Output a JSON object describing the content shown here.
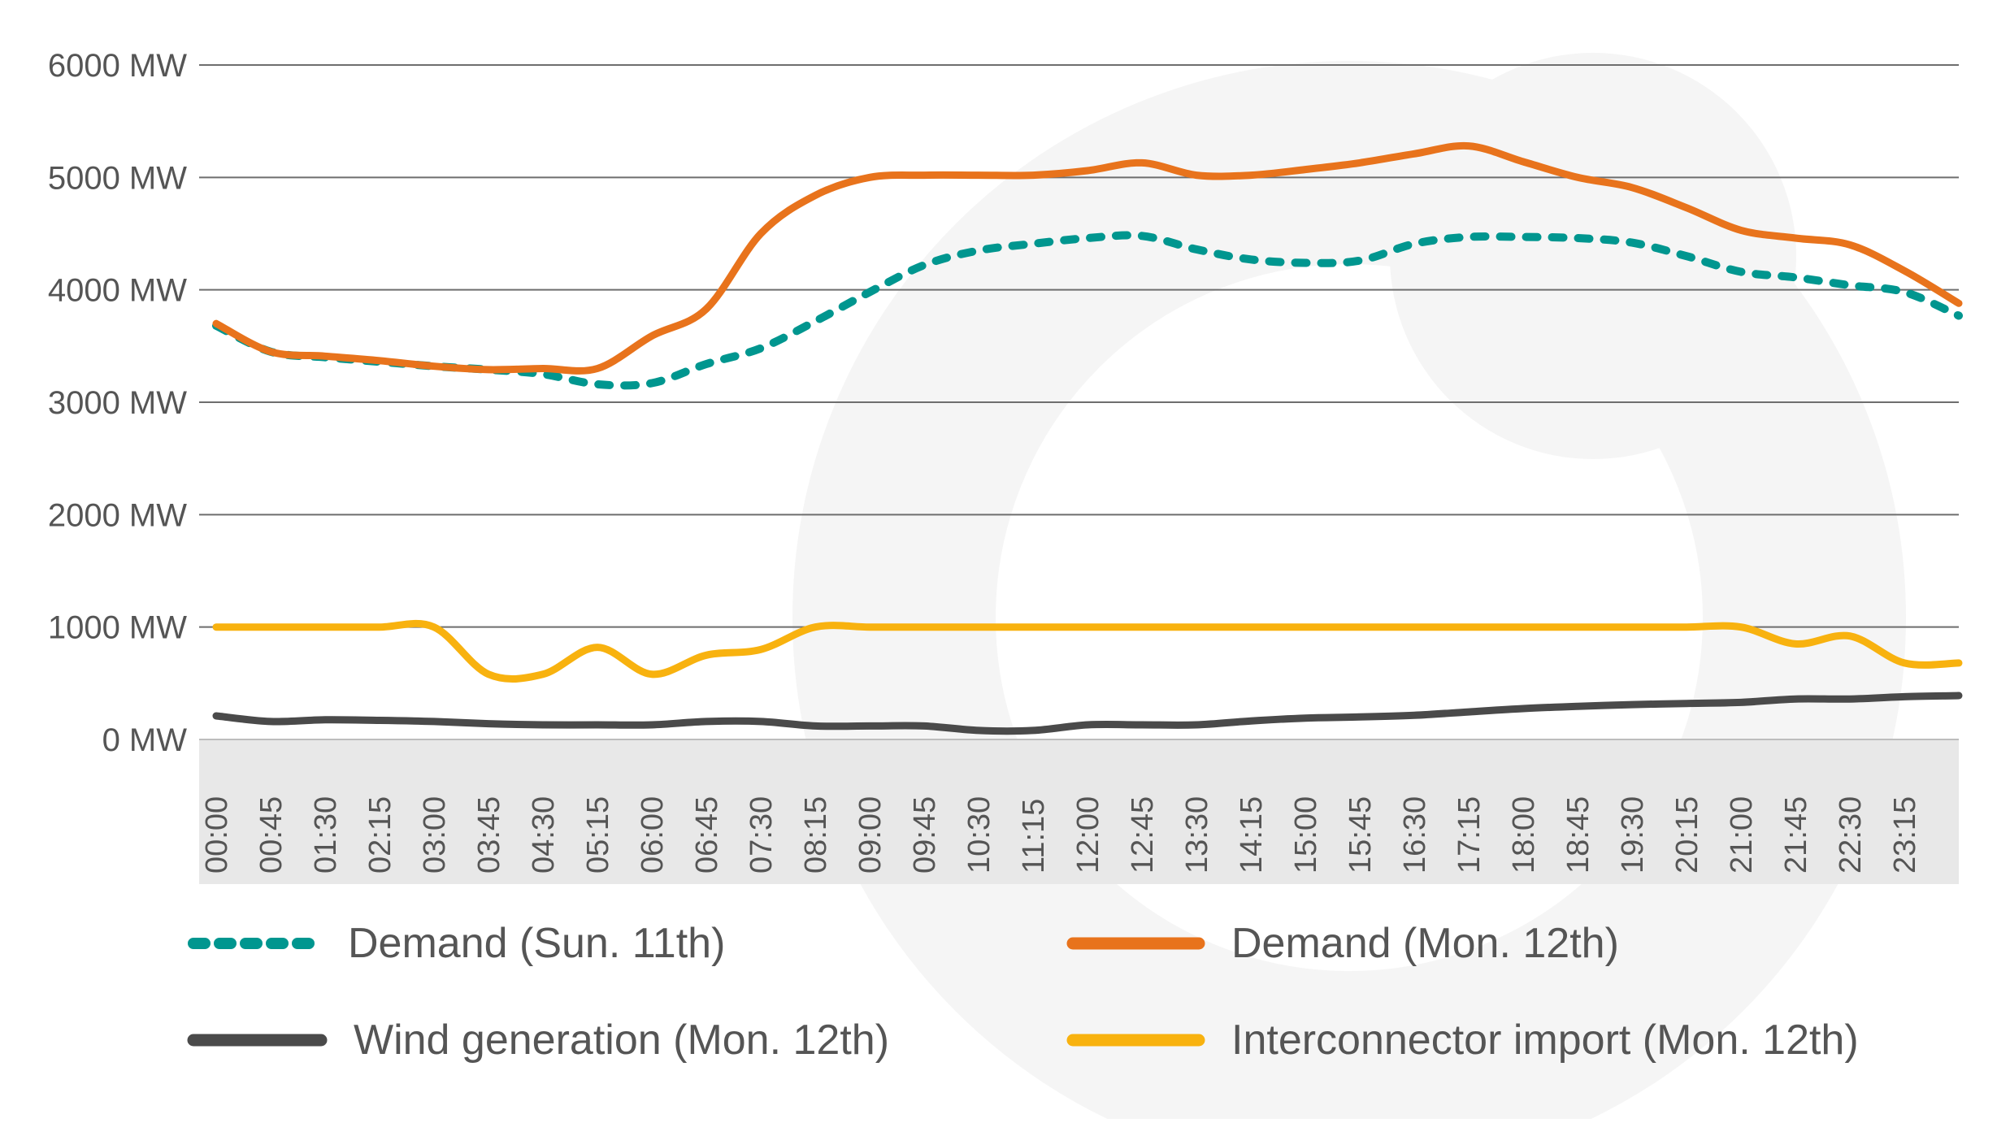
{
  "chart_data": {
    "type": "line",
    "y_unit": "MW",
    "ylim": [
      0,
      6000
    ],
    "yticks": [
      {
        "value": 0,
        "label": "0 MW"
      },
      {
        "value": 1000,
        "label": "1000 MW"
      },
      {
        "value": 2000,
        "label": "2000 MW"
      },
      {
        "value": 3000,
        "label": "3000 MW"
      },
      {
        "value": 4000,
        "label": "4000 MW"
      },
      {
        "value": 5000,
        "label": "5000 MW"
      },
      {
        "value": 6000,
        "label": "6000 MW"
      }
    ],
    "grid": true,
    "legend_position": "bottom",
    "xtick_labels": [
      "00:00",
      "00:45",
      "01:30",
      "02:15",
      "03:00",
      "03:45",
      "04:30",
      "05:15",
      "06:00",
      "06:45",
      "07:30",
      "08:15",
      "09:00",
      "09:45",
      "10:30",
      "11:15",
      "12:00",
      "12:45",
      "13:30",
      "14:15",
      "15:00",
      "15:45",
      "16:30",
      "17:15",
      "18:00",
      "18:45",
      "19:30",
      "20:15",
      "21:00",
      "21:45",
      "22:30",
      "23:15"
    ],
    "x": [
      "00:00",
      "00:45",
      "01:30",
      "02:15",
      "03:00",
      "03:45",
      "04:30",
      "05:15",
      "06:00",
      "06:45",
      "07:30",
      "08:15",
      "09:00",
      "09:45",
      "10:30",
      "11:15",
      "12:00",
      "12:45",
      "13:30",
      "14:15",
      "15:00",
      "15:45",
      "16:30",
      "17:15",
      "18:00",
      "18:45",
      "19:30",
      "20:15",
      "21:00",
      "21:45",
      "22:30",
      "23:15",
      "23:45"
    ],
    "series": [
      {
        "name": "Demand (Sun. 11th)",
        "color": "#00968F",
        "dash": true,
        "values": [
          3680,
          3450,
          3400,
          3360,
          3320,
          3290,
          3250,
          3160,
          3170,
          3340,
          3480,
          3720,
          3980,
          4220,
          4350,
          4410,
          4460,
          4480,
          4360,
          4270,
          4240,
          4260,
          4410,
          4470,
          4470,
          4460,
          4420,
          4300,
          4160,
          4110,
          4040,
          3980,
          3770
        ]
      },
      {
        "name": "Demand (Mon. 12th)",
        "color": "#E8731C",
        "dash": false,
        "values": [
          3700,
          3450,
          3410,
          3370,
          3320,
          3290,
          3300,
          3300,
          3590,
          3830,
          4500,
          4840,
          5000,
          5020,
          5020,
          5020,
          5060,
          5130,
          5020,
          5020,
          5070,
          5130,
          5210,
          5280,
          5140,
          5000,
          4910,
          4730,
          4530,
          4460,
          4400,
          4170,
          3880
        ]
      },
      {
        "name": "Wind generation (Mon. 12th)",
        "color": "#4A4A4A",
        "dash": false,
        "values": [
          210,
          160,
          175,
          170,
          160,
          140,
          130,
          130,
          130,
          160,
          160,
          120,
          120,
          120,
          80,
          80,
          130,
          130,
          130,
          165,
          190,
          200,
          215,
          245,
          275,
          295,
          310,
          320,
          330,
          360,
          360,
          380,
          390
        ]
      },
      {
        "name": "Interconnector import (Mon. 12th)",
        "color": "#F8B20F",
        "dash": false,
        "values": [
          1000,
          1000,
          1000,
          1000,
          1000,
          580,
          580,
          820,
          580,
          750,
          800,
          1000,
          1000,
          1000,
          1000,
          1000,
          1000,
          1000,
          1000,
          1000,
          1000,
          1000,
          1000,
          1000,
          1000,
          1000,
          1000,
          1000,
          1000,
          850,
          920,
          680,
          680
        ]
      }
    ]
  }
}
